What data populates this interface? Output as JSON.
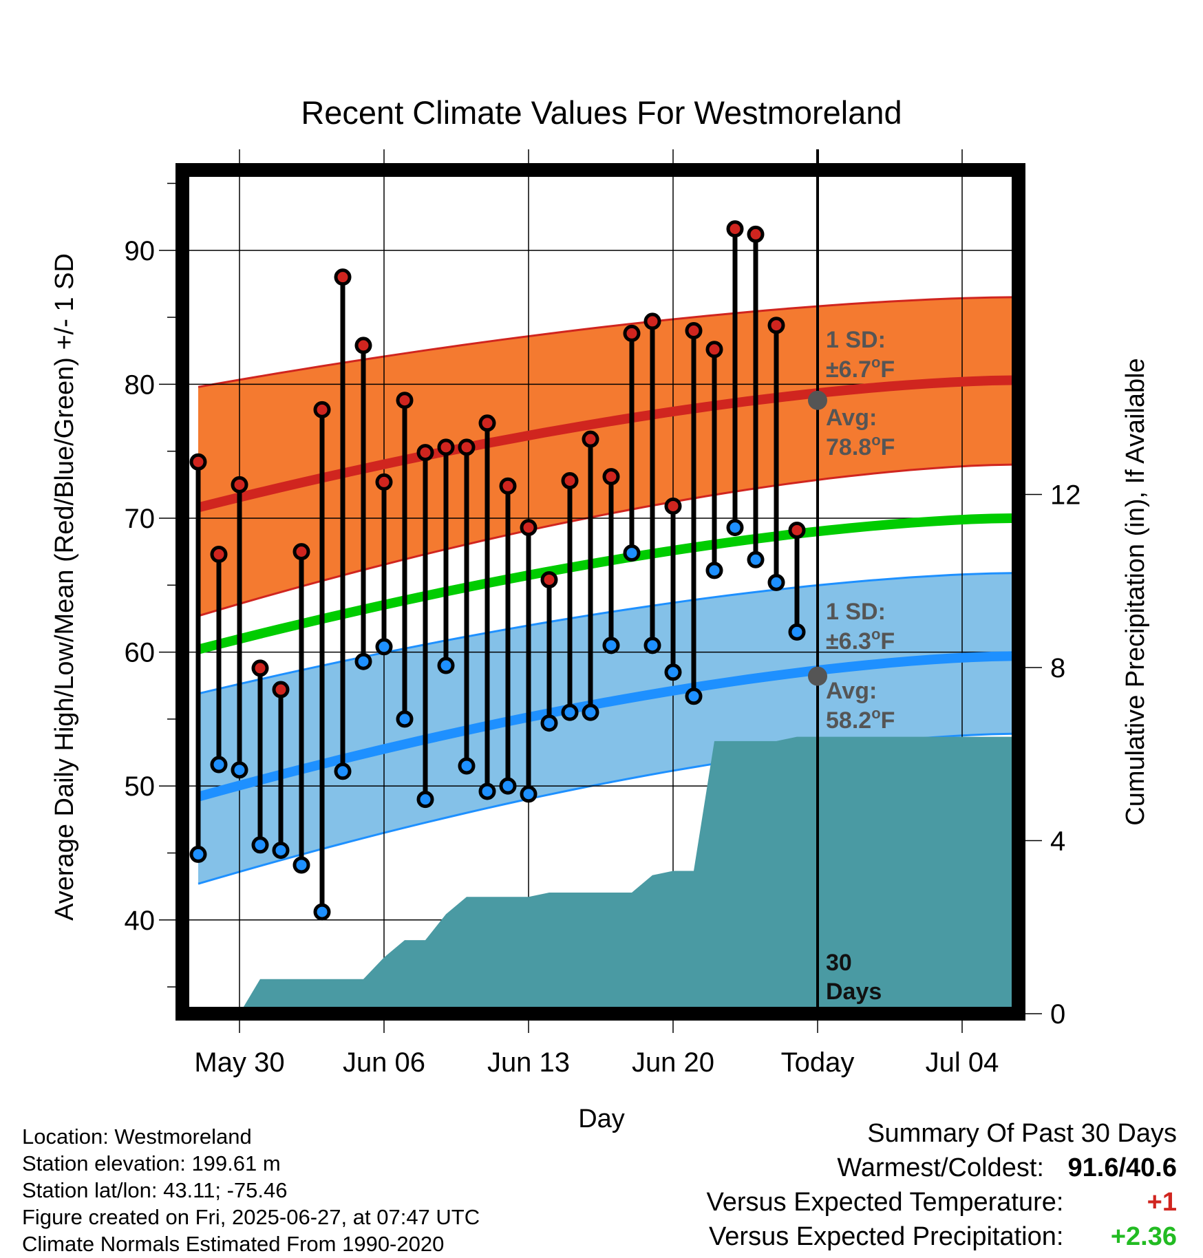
{
  "chart_data": {
    "type": "line",
    "title": "Recent Climate Values For Westmoreland",
    "xlabel": "Day",
    "ylabel": "Average Daily High/Low/Mean (Red/Blue/Green) +/- 1 SD",
    "y2label": "Cumulative Precipitation (in), If Available",
    "ylim": [
      33,
      96
    ],
    "y2lim": [
      0,
      19.5
    ],
    "yticks": [
      "40",
      "50",
      "60",
      "70",
      "80",
      "90"
    ],
    "y2ticks": [
      "0",
      "4",
      "8",
      "12"
    ],
    "xticks": [
      "May 30",
      "Jun 06",
      "Jun 13",
      "Jun 20",
      "Today",
      "Jul 04"
    ],
    "grid": true,
    "days": [
      "May 28",
      "May 29",
      "May 30",
      "May 31",
      "Jun 01",
      "Jun 02",
      "Jun 03",
      "Jun 04",
      "Jun 05",
      "Jun 06",
      "Jun 07",
      "Jun 08",
      "Jun 09",
      "Jun 10",
      "Jun 11",
      "Jun 12",
      "Jun 13",
      "Jun 14",
      "Jun 15",
      "Jun 16",
      "Jun 17",
      "Jun 18",
      "Jun 19",
      "Jun 20",
      "Jun 21",
      "Jun 22",
      "Jun 23",
      "Jun 24",
      "Jun 25",
      "Jun 26"
    ],
    "daily_high": [
      74.2,
      67.3,
      72.5,
      58.8,
      57.2,
      67.5,
      78.1,
      88.0,
      82.9,
      72.7,
      78.8,
      74.9,
      75.3,
      75.3,
      77.1,
      72.4,
      69.3,
      65.4,
      72.8,
      75.9,
      73.1,
      83.8,
      84.7,
      70.9,
      84.0,
      82.6,
      91.6,
      91.2,
      84.4,
      69.1
    ],
    "daily_low": [
      44.9,
      51.6,
      51.2,
      45.6,
      45.2,
      44.1,
      40.6,
      51.1,
      59.3,
      60.4,
      55.0,
      49.0,
      59.0,
      51.5,
      49.6,
      50.0,
      49.4,
      54.7,
      55.5,
      55.5,
      60.5,
      67.4,
      60.5,
      58.5,
      56.7,
      66.1,
      69.3,
      66.9,
      65.2,
      61.5
    ],
    "normal_high_avg": [
      70.8,
      80.3
    ],
    "normal_high_sd": "±6.7°F",
    "normal_high_today": "78.8°F",
    "normal_low_avg": [
      49.2,
      59.7
    ],
    "normal_low_sd": "±6.3°F",
    "normal_low_today": "58.2°F",
    "normal_mean": [
      60.2,
      70.0
    ],
    "cumulative_precip": [
      0.0,
      0.0,
      0.0,
      0.8,
      0.8,
      0.8,
      0.8,
      0.8,
      0.8,
      1.3,
      1.7,
      1.7,
      2.3,
      2.7,
      2.7,
      2.7,
      2.7,
      2.8,
      2.8,
      2.8,
      2.8,
      2.8,
      3.2,
      3.3,
      3.3,
      6.3,
      6.3,
      6.3,
      6.3,
      6.4
    ],
    "colors": {
      "high_band": "#f47a30",
      "high_line": "#d0251f",
      "low_band": "#84c1e8",
      "low_line": "#1e90ff",
      "mean_line": "#00cc00",
      "precip": "#4a9aa3",
      "high_marker": "#d0251f",
      "low_marker": "#1e90ff",
      "today_marker": "#555555"
    },
    "annotations": {
      "high_sd_label": "1 SD:",
      "high_avg_label": "Avg:",
      "low_sd_label": "1 SD:",
      "low_avg_label": "Avg:",
      "days_count": "30",
      "days_word": "Days"
    }
  },
  "info": {
    "location": "Location: Westmoreland",
    "elevation": "Station elevation: 199.61 m",
    "latlon": "Station lat/lon: 43.11; -75.46",
    "created": "Figure created on Fri, 2025-06-27, at 07:47 UTC",
    "normals": "Climate Normals Estimated From 1990-2020"
  },
  "summary": {
    "heading": "Summary Of Past 30 Days",
    "warmest_label": "Warmest/Coldest:",
    "warmest_value": "91.6/40.6",
    "temp_label": "Versus Expected Temperature:",
    "temp_value": "+1",
    "precip_label": "Versus Expected Precipitation:",
    "precip_value": "+2.36"
  }
}
